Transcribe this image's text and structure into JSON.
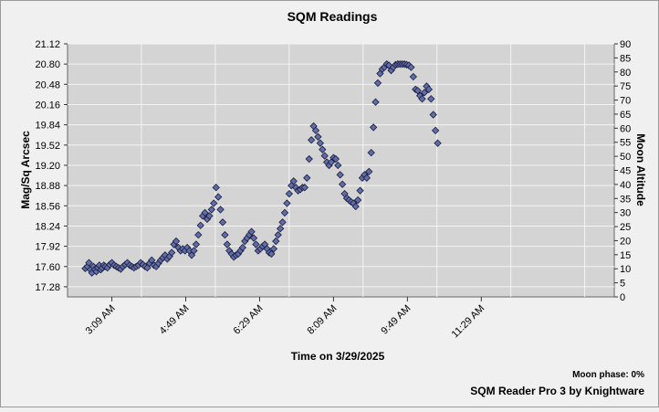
{
  "chart_data": {
    "type": "scatter",
    "title": "SQM Readings",
    "xlabel": "Time on 3/29/2025",
    "ylabel": "Mag/Sq Arcsec",
    "y2label": "Moon Altitude",
    "x_unit": "minutes after midnight",
    "xlim": [
      129,
      869
    ],
    "ylim": [
      17.12,
      21.12
    ],
    "y2lim": [
      0,
      90
    ],
    "x_ticks": [
      189,
      289,
      389,
      489,
      589,
      689
    ],
    "x_tick_labels": [
      "3:09 AM",
      "4:49 AM",
      "6:29 AM",
      "8:09 AM",
      "9:49 AM",
      "11:29 AM"
    ],
    "y_ticks": [
      17.28,
      17.6,
      17.92,
      18.24,
      18.56,
      18.88,
      19.2,
      19.52,
      19.84,
      20.16,
      20.48,
      20.8,
      21.12
    ],
    "y_tick_labels": [
      "17.28",
      "17.60",
      "17.92",
      "18.24",
      "18.56",
      "18.88",
      "19.20",
      "19.52",
      "19.84",
      "20.16",
      "20.48",
      "20.80",
      "21.12"
    ],
    "y2_ticks": [
      0,
      5,
      10,
      15,
      20,
      25,
      30,
      35,
      40,
      45,
      50,
      55,
      60,
      65,
      70,
      75,
      80,
      85,
      90
    ],
    "x_grid_step": 100,
    "grid": true,
    "marker": "diamond",
    "marker_color": "#5f6ea8",
    "points": [
      [
        153,
        17.57
      ],
      [
        156,
        17.6
      ],
      [
        158,
        17.66
      ],
      [
        160,
        17.55
      ],
      [
        162,
        17.5
      ],
      [
        164,
        17.6
      ],
      [
        166,
        17.55
      ],
      [
        168,
        17.52
      ],
      [
        170,
        17.58
      ],
      [
        172,
        17.62
      ],
      [
        174,
        17.55
      ],
      [
        176,
        17.58
      ],
      [
        178,
        17.62
      ],
      [
        180,
        17.6
      ],
      [
        183,
        17.58
      ],
      [
        186,
        17.63
      ],
      [
        189,
        17.66
      ],
      [
        192,
        17.62
      ],
      [
        195,
        17.6
      ],
      [
        198,
        17.58
      ],
      [
        201,
        17.56
      ],
      [
        204,
        17.6
      ],
      [
        207,
        17.63
      ],
      [
        210,
        17.66
      ],
      [
        213,
        17.62
      ],
      [
        216,
        17.6
      ],
      [
        219,
        17.58
      ],
      [
        222,
        17.6
      ],
      [
        225,
        17.62
      ],
      [
        228,
        17.66
      ],
      [
        231,
        17.63
      ],
      [
        234,
        17.6
      ],
      [
        237,
        17.58
      ],
      [
        240,
        17.65
      ],
      [
        243,
        17.7
      ],
      [
        246,
        17.62
      ],
      [
        249,
        17.6
      ],
      [
        252,
        17.65
      ],
      [
        255,
        17.7
      ],
      [
        258,
        17.74
      ],
      [
        261,
        17.78
      ],
      [
        264,
        17.72
      ],
      [
        267,
        17.76
      ],
      [
        270,
        17.82
      ],
      [
        273,
        17.95
      ],
      [
        276,
        18.0
      ],
      [
        279,
        17.9
      ],
      [
        282,
        17.85
      ],
      [
        285,
        17.88
      ],
      [
        288,
        17.85
      ],
      [
        291,
        17.9
      ],
      [
        294,
        17.85
      ],
      [
        297,
        17.78
      ],
      [
        300,
        17.85
      ],
      [
        303,
        17.95
      ],
      [
        306,
        18.1
      ],
      [
        309,
        18.25
      ],
      [
        312,
        18.4
      ],
      [
        315,
        18.45
      ],
      [
        318,
        18.35
      ],
      [
        321,
        18.4
      ],
      [
        324,
        18.5
      ],
      [
        327,
        18.6
      ],
      [
        330,
        18.85
      ],
      [
        333,
        18.7
      ],
      [
        336,
        18.5
      ],
      [
        339,
        18.3
      ],
      [
        342,
        18.1
      ],
      [
        345,
        17.95
      ],
      [
        348,
        17.85
      ],
      [
        351,
        17.8
      ],
      [
        354,
        17.75
      ],
      [
        357,
        17.78
      ],
      [
        360,
        17.8
      ],
      [
        363,
        17.85
      ],
      [
        366,
        17.9
      ],
      [
        369,
        18.0
      ],
      [
        372,
        18.05
      ],
      [
        375,
        18.1
      ],
      [
        378,
        18.15
      ],
      [
        381,
        18.05
      ],
      [
        384,
        17.95
      ],
      [
        387,
        17.85
      ],
      [
        390,
        17.88
      ],
      [
        393,
        17.92
      ],
      [
        396,
        17.95
      ],
      [
        399,
        17.88
      ],
      [
        402,
        17.82
      ],
      [
        405,
        17.8
      ],
      [
        408,
        17.88
      ],
      [
        411,
        18.0
      ],
      [
        414,
        18.1
      ],
      [
        417,
        18.2
      ],
      [
        420,
        18.3
      ],
      [
        423,
        18.45
      ],
      [
        426,
        18.6
      ],
      [
        429,
        18.75
      ],
      [
        432,
        18.88
      ],
      [
        435,
        18.95
      ],
      [
        438,
        18.85
      ],
      [
        441,
        18.8
      ],
      [
        444,
        18.82
      ],
      [
        447,
        18.85
      ],
      [
        450,
        18.85
      ],
      [
        453,
        19.0
      ],
      [
        456,
        19.3
      ],
      [
        459,
        19.6
      ],
      [
        462,
        19.82
      ],
      [
        465,
        19.75
      ],
      [
        468,
        19.65
      ],
      [
        471,
        19.55
      ],
      [
        474,
        19.45
      ],
      [
        477,
        19.35
      ],
      [
        480,
        19.25
      ],
      [
        483,
        19.2
      ],
      [
        486,
        19.25
      ],
      [
        489,
        19.32
      ],
      [
        492,
        19.3
      ],
      [
        495,
        19.2
      ],
      [
        498,
        19.05
      ],
      [
        501,
        18.9
      ],
      [
        504,
        18.75
      ],
      [
        507,
        18.68
      ],
      [
        510,
        18.65
      ],
      [
        513,
        18.62
      ],
      [
        516,
        18.6
      ],
      [
        519,
        18.55
      ],
      [
        522,
        18.65
      ],
      [
        525,
        18.8
      ],
      [
        528,
        19.0
      ],
      [
        531,
        19.05
      ],
      [
        534,
        19.0
      ],
      [
        537,
        19.1
      ],
      [
        540,
        19.4
      ],
      [
        543,
        19.8
      ],
      [
        546,
        20.2
      ],
      [
        549,
        20.5
      ],
      [
        552,
        20.65
      ],
      [
        555,
        20.72
      ],
      [
        558,
        20.75
      ],
      [
        561,
        20.8
      ],
      [
        564,
        20.78
      ],
      [
        567,
        20.7
      ],
      [
        570,
        20.75
      ],
      [
        573,
        20.79
      ],
      [
        576,
        20.8
      ],
      [
        579,
        20.8
      ],
      [
        582,
        20.8
      ],
      [
        585,
        20.8
      ],
      [
        588,
        20.79
      ],
      [
        591,
        20.78
      ],
      [
        594,
        20.75
      ],
      [
        597,
        20.6
      ],
      [
        600,
        20.4
      ],
      [
        603,
        20.38
      ],
      [
        606,
        20.3
      ],
      [
        609,
        20.25
      ],
      [
        612,
        20.35
      ],
      [
        615,
        20.45
      ],
      [
        618,
        20.4
      ],
      [
        621,
        20.25
      ],
      [
        624,
        20.0
      ],
      [
        627,
        19.75
      ],
      [
        630,
        19.55
      ]
    ]
  },
  "footer": {
    "moon_phase": "Moon phase: 0%",
    "credit": "SQM Reader Pro 3 by Knightware"
  }
}
